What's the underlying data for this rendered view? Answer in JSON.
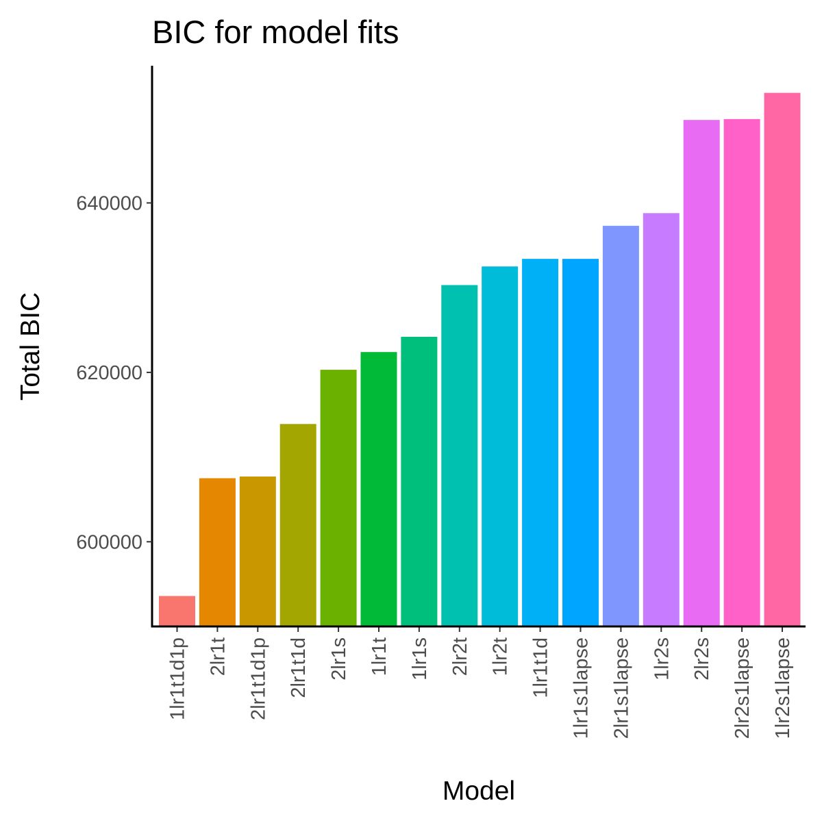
{
  "chart_data": {
    "type": "bar",
    "title": "BIC for model fits",
    "xlabel": "Model",
    "ylabel": "Total BIC",
    "categories": [
      "1lr1t1d1p",
      "2lr1t",
      "2lr1t1d1p",
      "2lr1t1d",
      "2lr1s",
      "1lr1t",
      "1lr1s",
      "2lr2t",
      "1lr2t",
      "1lr1t1d",
      "1lr1s1lapse",
      "2lr1s1lapse",
      "1lr2s",
      "2lr2s",
      "2lr2s1lapse",
      "1lr2s1lapse"
    ],
    "values": [
      593600,
      607500,
      607700,
      613900,
      620300,
      622400,
      624200,
      630300,
      632500,
      633400,
      633400,
      637300,
      638800,
      649800,
      649900,
      653000
    ],
    "colors": [
      "#F8766D",
      "#E58700",
      "#C99800",
      "#A3A500",
      "#6BB100",
      "#00BA38",
      "#00BF7D",
      "#00C0AF",
      "#00BCD8",
      "#00B0F6",
      "#00A5FF",
      "#7F96FF",
      "#C77CFF",
      "#E76BF3",
      "#FF61C9",
      "#FF67A4"
    ],
    "ylim": [
      590000,
      656200
    ],
    "yticks": [
      600000,
      620000,
      640000
    ],
    "grid": false,
    "legend": "none"
  }
}
